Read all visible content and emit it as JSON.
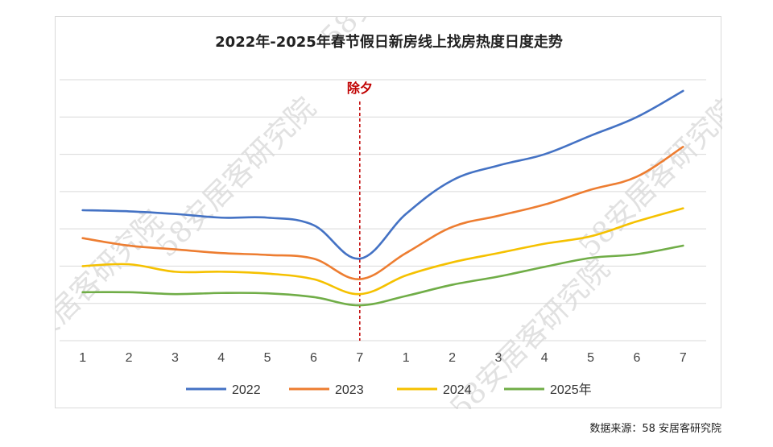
{
  "source_note": "数据来源：58 安居客研究院",
  "watermark_text": "58安居客研究院",
  "colors": {
    "2022": "#4472c4",
    "2023": "#ed7d31",
    "2024": "#f5c100",
    "2025年": "#70ad47",
    "marker": "#c00000",
    "grid": "#d9d9d9"
  },
  "chart_data": {
    "type": "line",
    "title": "2022年-2025年春节假日新房线上找房热度日度走势",
    "xlabel": "",
    "ylabel": "",
    "categories": [
      "1",
      "2",
      "3",
      "4",
      "5",
      "6",
      "7",
      "1",
      "2",
      "3",
      "4",
      "5",
      "6",
      "7"
    ],
    "ylim": [
      0,
      7
    ],
    "y_axis_labels_shown": false,
    "grid": "horizontal",
    "legend_position": "bottom",
    "vertical_marker": {
      "label": "除夕",
      "category_index": 6,
      "style": "dashed"
    },
    "series": [
      {
        "name": "2022",
        "values": [
          3.5,
          3.47,
          3.4,
          3.3,
          3.3,
          3.1,
          2.2,
          3.4,
          4.3,
          4.7,
          5.0,
          5.5,
          6.0,
          6.7
        ]
      },
      {
        "name": "2023",
        "values": [
          2.75,
          2.55,
          2.45,
          2.35,
          2.3,
          2.2,
          1.65,
          2.35,
          3.05,
          3.35,
          3.65,
          4.05,
          4.4,
          5.2
        ]
      },
      {
        "name": "2024",
        "values": [
          2.0,
          2.05,
          1.85,
          1.85,
          1.8,
          1.65,
          1.25,
          1.75,
          2.1,
          2.35,
          2.6,
          2.8,
          3.2,
          3.55
        ]
      },
      {
        "name": "2025年",
        "values": [
          1.3,
          1.3,
          1.25,
          1.28,
          1.27,
          1.17,
          0.95,
          1.2,
          1.5,
          1.72,
          1.98,
          2.22,
          2.32,
          2.55
        ]
      }
    ]
  }
}
